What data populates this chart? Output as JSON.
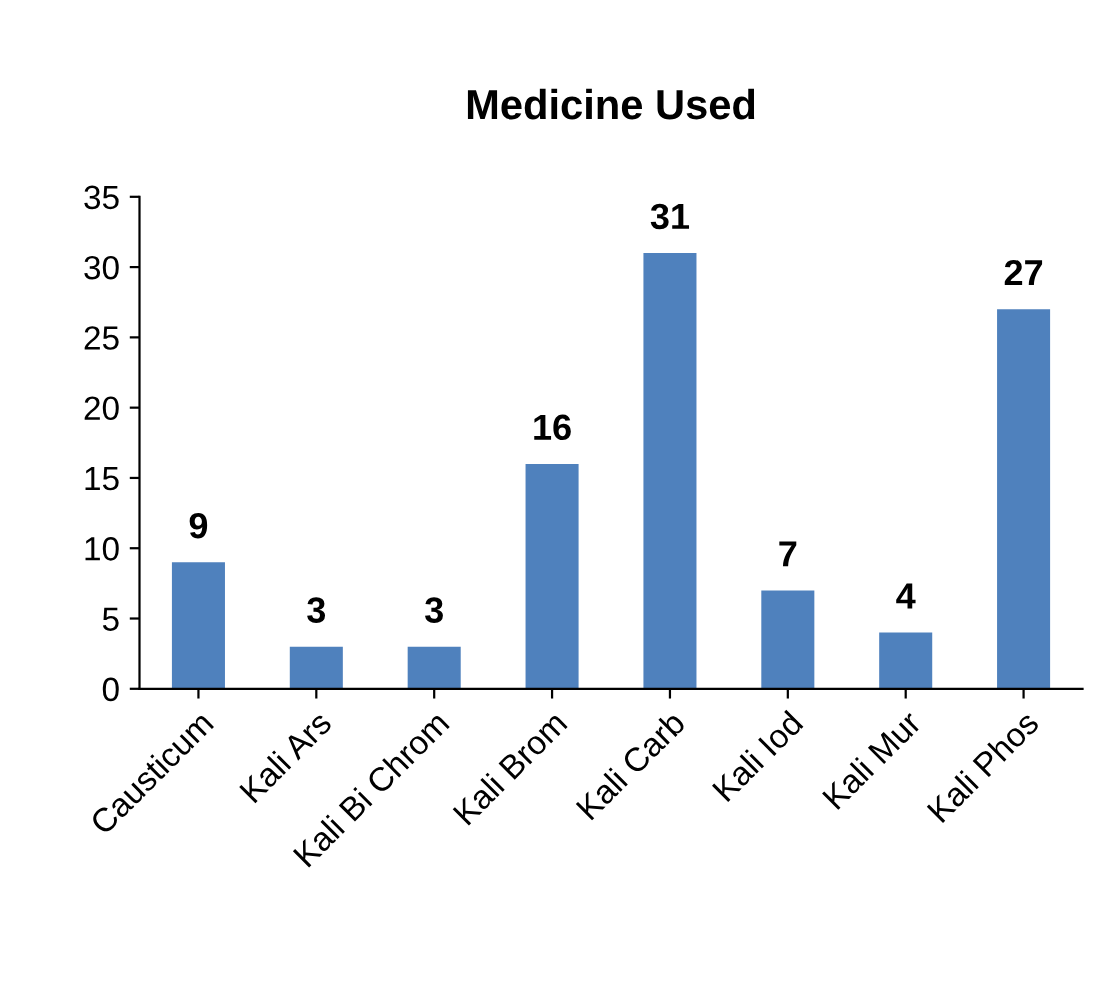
{
  "chart_data": {
    "type": "bar",
    "title": "Medicine Used",
    "categories": [
      "Causticum",
      "Kali Ars",
      "Kali Bi Chrom",
      "Kali Brom",
      "Kali Carb",
      "Kali Iod",
      "Kali Mur",
      "Kali Phos"
    ],
    "values": [
      9,
      3,
      3,
      16,
      31,
      7,
      4,
      27
    ],
    "color": "#4f81bd",
    "ylim": [
      0,
      35
    ],
    "yticks": [
      0,
      5,
      10,
      15,
      20,
      25,
      30,
      35
    ],
    "grid": false,
    "data_labels": true
  }
}
